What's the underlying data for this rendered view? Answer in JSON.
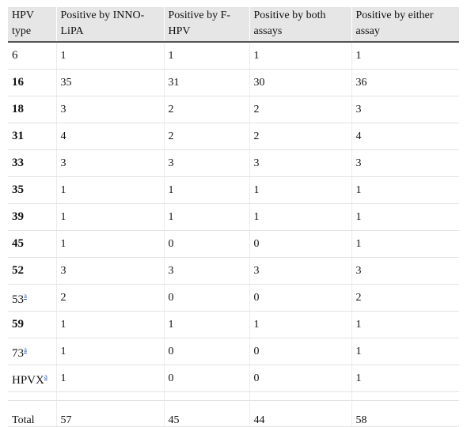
{
  "headers": [
    "HPV type",
    "Positive by INNO-LiPA",
    "Positive by F-HPV",
    "Positive by both assays",
    "Positive by either assay"
  ],
  "rows": [
    {
      "type": "6",
      "bold": false,
      "sup": "",
      "values": [
        "1",
        "1",
        "1",
        "1"
      ]
    },
    {
      "type": "16",
      "bold": true,
      "sup": "",
      "values": [
        "35",
        "31",
        "30",
        "36"
      ]
    },
    {
      "type": "18",
      "bold": true,
      "sup": "",
      "values": [
        "3",
        "2",
        "2",
        "3"
      ]
    },
    {
      "type": "31",
      "bold": true,
      "sup": "",
      "values": [
        "4",
        "2",
        "2",
        "4"
      ]
    },
    {
      "type": "33",
      "bold": true,
      "sup": "",
      "values": [
        "3",
        "3",
        "3",
        "3"
      ]
    },
    {
      "type": "35",
      "bold": true,
      "sup": "",
      "values": [
        "1",
        "1",
        "1",
        "1"
      ]
    },
    {
      "type": "39",
      "bold": true,
      "sup": "",
      "values": [
        "1",
        "1",
        "1",
        "1"
      ]
    },
    {
      "type": "45",
      "bold": true,
      "sup": "",
      "values": [
        "1",
        "0",
        "0",
        "1"
      ]
    },
    {
      "type": "52",
      "bold": true,
      "sup": "",
      "values": [
        "3",
        "3",
        "3",
        "3"
      ]
    },
    {
      "type": "53",
      "bold": false,
      "sup": "a",
      "values": [
        "2",
        "0",
        "0",
        "2"
      ]
    },
    {
      "type": "59",
      "bold": true,
      "sup": "",
      "values": [
        "1",
        "1",
        "1",
        "1"
      ]
    },
    {
      "type": "73",
      "bold": false,
      "sup": "a",
      "values": [
        "1",
        "0",
        "0",
        "1"
      ]
    },
    {
      "type": "HPVX",
      "bold": false,
      "sup": "a",
      "values": [
        "1",
        "0",
        "0",
        "1"
      ]
    }
  ],
  "total": {
    "label": "Total",
    "values": [
      "57",
      "45",
      "44",
      "58"
    ]
  },
  "colors": {
    "header_bg": "#e6e6e6",
    "link": "#2a5db0"
  }
}
